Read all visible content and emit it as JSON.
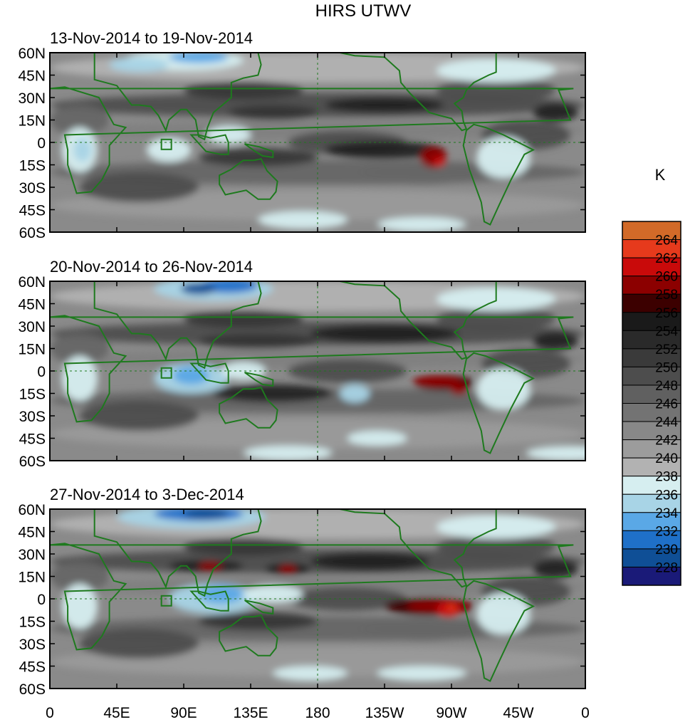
{
  "title": "HIRS UTWV",
  "chart_data": {
    "type": "heatmap",
    "title": "HIRS UTWV",
    "units": "K",
    "lat_labels": [
      "60N",
      "45N",
      "30N",
      "15N",
      "0",
      "15S",
      "30S",
      "45S",
      "60S"
    ],
    "lon_labels": [
      "0",
      "45E",
      "90E",
      "135E",
      "180",
      "135W",
      "90W",
      "45W",
      "0"
    ],
    "lat_range": [
      -60,
      60
    ],
    "lon_range": [
      0,
      360
    ],
    "panels": [
      {
        "title": "13-Nov-2014 to 19-Nov-2014"
      },
      {
        "title": "20-Nov-2014 to 26-Nov-2014"
      },
      {
        "title": "27-Nov-2014 to 3-Dec-2014"
      }
    ],
    "colorbar": {
      "label": "K",
      "levels": [
        "264",
        "262",
        "260",
        "258",
        "256",
        "254",
        "252",
        "250",
        "248",
        "246",
        "244",
        "242",
        "240",
        "238",
        "236",
        "234",
        "232",
        "230",
        "228"
      ],
      "colors": [
        "#d26a28",
        "#e63a1c",
        "#c90a0a",
        "#8c0000",
        "#3c0000",
        "#1a1a1a",
        "#2a2a2a",
        "#3a3a3a",
        "#4d4d4d",
        "#606060",
        "#737373",
        "#888888",
        "#9c9c9c",
        "#b2b2b2",
        "#d6eef0",
        "#a8d4e6",
        "#5aa8e6",
        "#1f70c8",
        "#0f4f96",
        "#1a1a78"
      ]
    }
  }
}
